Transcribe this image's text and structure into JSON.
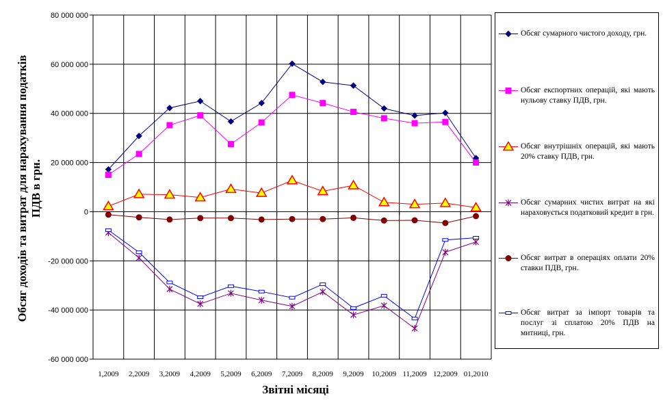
{
  "chart_data": {
    "type": "line",
    "ylabel": "Обсяг доходів та витрат для нарахування податків ПДВ в грн.",
    "xlabel": "Звітні місяці",
    "categories": [
      "1,2009",
      "2,2009",
      "3,2009",
      "4,2009",
      "5,2009",
      "6,2009",
      "7,2009",
      "8,2009",
      "9,2009",
      "10,2009",
      "11,2009",
      "12,2009",
      "01,2010"
    ],
    "ylim": [
      -60000000,
      80000000
    ],
    "yticks": [
      80000000,
      60000000,
      40000000,
      20000000,
      0,
      -20000000,
      -40000000,
      -60000000
    ],
    "ytick_labels": [
      "80 000 000",
      "60 000 000",
      "40 000 000",
      "20 000 000",
      "0",
      "-20 000 000",
      "-40 000 000",
      "-60 000 000"
    ],
    "grid": "horizontal and vertical",
    "legend_position": "right",
    "series": [
      {
        "name": "Обсяг сумарного чистого доходу, грн.",
        "color": "#000080",
        "marker": "diamond",
        "values": [
          17200000,
          30800000,
          42200000,
          45000000,
          36700000,
          44200000,
          60200000,
          52800000,
          51300000,
          42000000,
          39100000,
          40200000,
          21800000
        ]
      },
      {
        "name": "Обсяг експортних операцій, які мають нульову ставку ПДВ, грн.",
        "color": "#FF00FF",
        "marker": "square",
        "values": [
          15000000,
          23500000,
          35200000,
          39200000,
          27500000,
          36300000,
          47500000,
          44200000,
          40600000,
          38000000,
          36000000,
          36500000,
          20000000
        ]
      },
      {
        "name": "Обсяг внутрішніх операцій, які мають 20% ставку ПДВ, грн.",
        "color": "#FF0000",
        "marker": "triangle",
        "values": [
          2200000,
          7100000,
          6900000,
          5800000,
          9200000,
          7600000,
          12700000,
          8300000,
          10700000,
          3800000,
          3000000,
          3500000,
          1700000
        ]
      },
      {
        "name": "Обсяг сумарних чистих витрат на які нараховується податковий кредит в грн.",
        "color": "#800080",
        "marker": "star",
        "values": [
          -8500000,
          -18800000,
          -31500000,
          -37500000,
          -33200000,
          -36000000,
          -38500000,
          -32600000,
          -42000000,
          -38200000,
          -47500000,
          -16500000,
          -12300000
        ]
      },
      {
        "name": "Обсяг витрат в операціях оплати 20% ставки ПДВ, грн.",
        "color": "#800000",
        "marker": "circle",
        "values": [
          -1200000,
          -2300000,
          -3200000,
          -2600000,
          -2600000,
          -3200000,
          -3000000,
          -3000000,
          -2500000,
          -3600000,
          -3500000,
          -4600000,
          -1800000
        ]
      },
      {
        "name": "Обсяг витрат за імпорт товарів та послуг зі сплатою 20% ПДВ на митниці, грн.",
        "color": "#0000FF",
        "marker": "open-rect",
        "values": [
          -7500000,
          -16500000,
          -28800000,
          -34800000,
          -30300000,
          -32500000,
          -35000000,
          -29500000,
          -39200000,
          -34200000,
          -43500000,
          -11500000,
          -10600000
        ]
      }
    ]
  }
}
